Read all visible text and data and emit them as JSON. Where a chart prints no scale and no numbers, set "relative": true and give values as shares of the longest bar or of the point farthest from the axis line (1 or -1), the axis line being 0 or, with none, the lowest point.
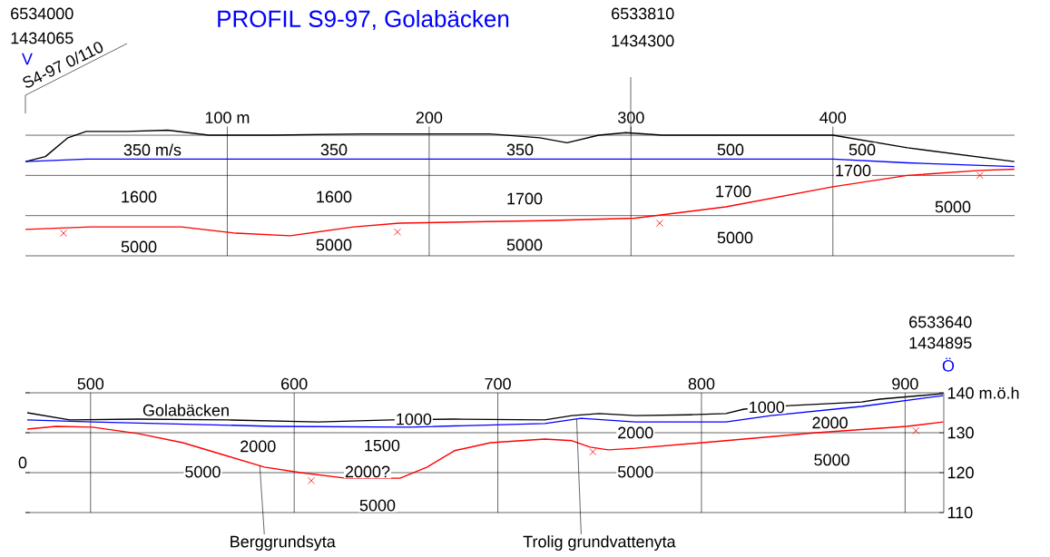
{
  "chart_data": [
    {
      "type": "line",
      "title": "PROFIL S9-97, Golabäcken",
      "relative": true,
      "xlim": [
        0,
        490
      ],
      "xticks": [
        {
          "value": 100,
          "label": "100 m"
        },
        200,
        300,
        400
      ],
      "grid": "x",
      "marker": "none",
      "ref_lines": [
        {
          "axis": "y",
          "value": 0.32
        },
        {
          "axis": "y",
          "value": 0.64
        },
        {
          "axis": "y",
          "value": 0.96
        }
      ],
      "annotations": [
        "6534000",
        "1434065",
        "V",
        "S4-97 0/110",
        "6533810",
        "1434300",
        "350 m/s",
        "350",
        "350",
        "500",
        "500",
        "1700",
        "1600",
        "1600",
        "1700",
        "1700",
        "5000",
        "5000",
        "5000",
        "5000",
        "5000"
      ],
      "series": [
        {
          "color": "#000000",
          "x": [
            0,
            9.9,
            21.1,
            30.1,
            50.3,
            70.6,
            90.8,
            122,
            167,
            198.7,
            230,
            254.8,
            268.3,
            284,
            297.5,
            315.5,
            347,
            378.4,
            400,
            436.9,
            489.9
          ],
          "values": [
            0.75,
            0.79,
            0.94,
            0.99,
            0.99,
            1,
            0.96,
            0.96,
            0.97,
            0.97,
            0.97,
            0.94,
            0.9,
            0.96,
            0.98,
            0.96,
            0.96,
            0.96,
            0.96,
            0.86,
            0.75
          ]
        },
        {
          "color": "#0000ff",
          "x": [
            0,
            30.1,
            122,
            302,
            400,
            436.9,
            489.9
          ],
          "values": [
            0.75,
            0.77,
            0.77,
            0.77,
            0.77,
            0.74,
            0.71
          ]
        },
        {
          "color": "#ff0000",
          "x": [
            0,
            32.4,
            77.3,
            104.3,
            131.2,
            162.7,
            185.2,
            257,
            302,
            347,
            400,
            436.9,
            472.8,
            489.9
          ],
          "values": [
            0.21,
            0.23,
            0.23,
            0.18,
            0.16,
            0.23,
            0.26,
            0.28,
            0.3,
            0.39,
            0.55,
            0.64,
            0.68,
            0.69
          ]
        },
        {
          "type": "scatter",
          "marker": "cross",
          "color": "#ff0000",
          "x": [
            18.9,
            184.3,
            314.2,
            472.8
          ],
          "values": [
            0.18,
            0.19,
            0.26,
            0.64
          ]
        }
      ]
    },
    {
      "type": "line",
      "xlim": [
        468,
        919
      ],
      "ylim": [
        110,
        140
      ],
      "xticks": [
        500,
        600,
        700,
        800,
        900
      ],
      "yticks": [
        110,
        120,
        130,
        {
          "value": 140,
          "label": "140 m.ö.h"
        }
      ],
      "grid": true,
      "marker": "none",
      "annotations": [
        "0",
        "6533640",
        "1434895",
        "Ö",
        "Golabäcken",
        "2000?",
        {
          "text": "1000",
          "x": 658.7,
          "y": 133.4
        },
        {
          "text": "1000",
          "x": 832,
          "y": 136.4
        },
        {
          "text": "2000",
          "x": 767.6,
          "y": 130
        },
        {
          "text": "2000",
          "x": 863.1,
          "y": 132.5
        },
        {
          "text": "2000",
          "x": 582.2,
          "y": 126.6
        },
        {
          "text": "1500",
          "x": 643.1,
          "y": 126.8
        },
        {
          "text": "5000",
          "x": 555.1,
          "y": 120.2
        },
        {
          "text": "5000",
          "x": 767.6,
          "y": 120.2
        },
        {
          "text": "5000",
          "x": 864,
          "y": 123.2
        },
        {
          "text": "5000",
          "x": 640.9,
          "y": 111.8
        },
        {
          "text": "Berggrundsyta",
          "x": 583.1,
          "y": 121.8
        },
        {
          "text": "Trolig grundvattenyta",
          "x": 738.7,
          "y": 133.4
        }
      ],
      "series": [
        {
          "color": "#000000",
          "x": [
            468.9,
            489.8,
            523.1,
            567.6,
            612,
            647.6,
            678.7,
            723.1,
            736.4,
            749.8,
            767.6,
            794.2,
            812,
            820.9,
            843.1,
            878.7,
            887.6,
            918.7
          ],
          "values": [
            135,
            133.2,
            133.4,
            133.2,
            132.7,
            133.2,
            133.4,
            133.2,
            134.3,
            134.8,
            134.3,
            134.5,
            134.8,
            135.9,
            136.8,
            137.7,
            138.4,
            139.8
          ]
        },
        {
          "color": "#0000ff",
          "x": [
            468.9,
            500.9,
            589.8,
            656.4,
            723.1,
            740.9,
            767.6,
            812,
            834.2,
            878.7,
            918.7
          ],
          "values": [
            133.2,
            132.7,
            131.6,
            131.4,
            132.3,
            133.6,
            132.7,
            132.7,
            134.3,
            136.6,
            139.3
          ]
        },
        {
          "color": "#ff0000",
          "x": [
            468.9,
            483.1,
            500.9,
            523.1,
            545.3,
            567.6,
            585.3,
            603.1,
            625.3,
            652,
            665.3,
            678.7,
            696.4,
            723.1,
            736.4,
            745.3,
            754.2,
            767.6,
            812,
            856.4,
            900.9,
            918.7
          ],
          "values": [
            130.9,
            131.6,
            131.4,
            129.8,
            127.5,
            124.1,
            121.4,
            120,
            118.6,
            118.6,
            121.4,
            125.5,
            127.5,
            128.4,
            128,
            126.4,
            125.7,
            126.1,
            128,
            130,
            131.6,
            132.7
          ]
        },
        {
          "type": "scatter",
          "marker": "cross",
          "color": "#ff0000",
          "x": [
            608.4,
            746.7,
            905.3
          ],
          "values": [
            118,
            125.2,
            130.5
          ]
        }
      ]
    }
  ]
}
